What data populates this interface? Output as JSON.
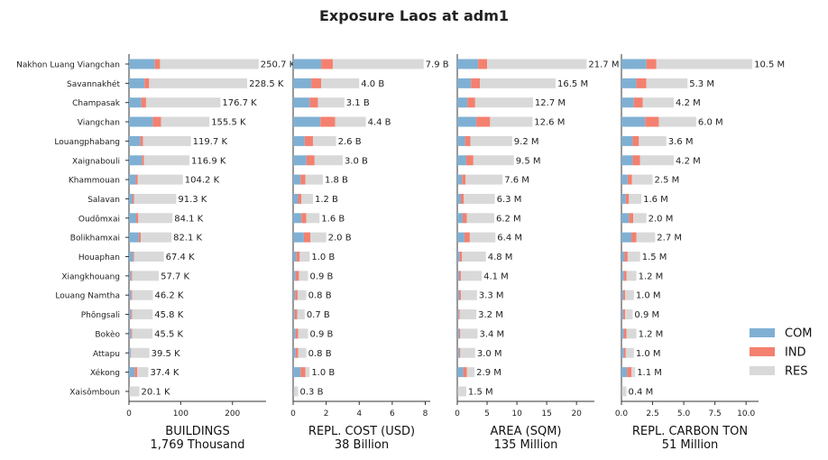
{
  "title": "Exposure Laos at adm1",
  "colors": {
    "COM": "#7fb0d3",
    "IND": "#f4806f",
    "RES": "#d9d9d9"
  },
  "legend": [
    "COM",
    "IND",
    "RES"
  ],
  "chart_data": {
    "type": "bar",
    "orientation": "horizontal",
    "stacked": true,
    "title": "Exposure Laos at adm1",
    "categories": [
      "Nakhon Luang Viangchan",
      "Savannakhét",
      "Champasak",
      "Viangchan",
      "Louangphabang",
      "Xaignabouli",
      "Khammouan",
      "Salavan",
      "Oudômxai",
      "Bolikhamxai",
      "Houaphan",
      "Xiangkhouang",
      "Louang Namtha",
      "Phôngsali",
      "Bokèo",
      "Attapu",
      "Xékong",
      "Xaisômboun"
    ],
    "panels": [
      {
        "xlabel": "BUILDINGS",
        "subtitle": "1,769 Thousand",
        "xlim": [
          0,
          265
        ],
        "xticks": [
          0,
          100,
          200
        ],
        "totals_label": [
          "250.7 K",
          "228.5 K",
          "176.7 K",
          "155.5 K",
          "119.7 K",
          "116.9 K",
          "104.2 K",
          "91.3 K",
          "84.1 K",
          "82.1 K",
          "67.4 K",
          "57.7 K",
          "46.2 K",
          "45.8 K",
          "45.5 K",
          "39.5 K",
          "37.4 K",
          "20.1 K"
        ],
        "series": [
          {
            "name": "COM",
            "values": [
              50,
              30,
              24,
              46,
              22,
              25,
              13,
              7,
              14,
              19,
              8,
              4,
              4,
              4,
              4,
              3,
              11,
              0.5
            ]
          },
          {
            "name": "IND",
            "values": [
              10,
              9,
              9,
              16,
              5,
              4,
              4,
              3,
              4,
              4,
              2,
              2,
              2,
              2,
              2,
              1,
              5,
              0.2
            ]
          },
          {
            "name": "RES",
            "values": [
              190.7,
              189.5,
              143.7,
              93.5,
              92.7,
              87.9,
              87.2,
              81.3,
              66.1,
              59.1,
              57.4,
              51.7,
              40.2,
              39.8,
              39.5,
              35.5,
              21.4,
              19.4
            ]
          }
        ]
      },
      {
        "xlabel": "REPL. COST (USD)",
        "subtitle": "38 Billion",
        "xlim": [
          0,
          8.3
        ],
        "xticks": [
          0,
          2,
          4,
          6,
          8
        ],
        "totals_label": [
          "7.9 B",
          "4.0 B",
          "3.1 B",
          "4.4 B",
          "2.6 B",
          "3.0 B",
          "1.8 B",
          "1.2 B",
          "1.6 B",
          "2.0 B",
          "1.0 B",
          "0.9 B",
          "0.8 B",
          "0.7 B",
          "0.9 B",
          "0.8 B",
          "1.0 B",
          "0.3 B"
        ],
        "series": [
          {
            "name": "COM",
            "values": [
              1.7,
              1.1,
              1.0,
              1.65,
              0.7,
              0.8,
              0.45,
              0.3,
              0.5,
              0.65,
              0.2,
              0.15,
              0.12,
              0.1,
              0.15,
              0.15,
              0.45,
              0.05
            ]
          },
          {
            "name": "IND",
            "values": [
              0.7,
              0.6,
              0.5,
              0.9,
              0.5,
              0.5,
              0.3,
              0.2,
              0.3,
              0.4,
              0.2,
              0.2,
              0.15,
              0.15,
              0.15,
              0.15,
              0.3,
              0.02
            ]
          },
          {
            "name": "RES",
            "values": [
              5.5,
              2.3,
              1.6,
              1.85,
              1.4,
              1.7,
              1.05,
              0.7,
              0.8,
              0.95,
              0.6,
              0.55,
              0.53,
              0.45,
              0.6,
              0.5,
              0.25,
              0.23
            ]
          }
        ]
      },
      {
        "xlabel": "AREA (SQM)",
        "subtitle": "135 Million",
        "xlim": [
          0,
          23
        ],
        "xticks": [
          0,
          5,
          10,
          15,
          20
        ],
        "totals_label": [
          "21.7 M",
          "16.5 M",
          "12.7 M",
          "12.6 M",
          "9.2 M",
          "9.5 M",
          "7.6 M",
          "6.3 M",
          "6.2 M",
          "6.4 M",
          "4.8 M",
          "4.1 M",
          "3.3 M",
          "3.2 M",
          "3.4 M",
          "3.0 M",
          "2.9 M",
          "1.5 M"
        ],
        "series": [
          {
            "name": "COM",
            "values": [
              3.5,
              2.3,
              1.7,
              3.2,
              1.3,
              1.5,
              0.8,
              0.6,
              0.9,
              1.2,
              0.4,
              0.3,
              0.3,
              0.2,
              0.3,
              0.3,
              1.0,
              0.05
            ]
          },
          {
            "name": "IND",
            "values": [
              1.5,
              1.5,
              1.3,
              2.3,
              0.9,
              1.2,
              0.6,
              0.5,
              0.7,
              0.9,
              0.4,
              0.3,
              0.3,
              0.2,
              0.2,
              0.2,
              0.6,
              0.05
            ]
          },
          {
            "name": "RES",
            "values": [
              16.7,
              12.7,
              9.7,
              7.1,
              7.0,
              6.8,
              6.2,
              5.2,
              4.6,
              4.3,
              4.0,
              3.5,
              2.7,
              2.8,
              2.9,
              2.5,
              1.3,
              1.4
            ]
          }
        ]
      },
      {
        "xlabel": "REPL. CARBON TON",
        "subtitle": "51 Million",
        "xlim": [
          0,
          11
        ],
        "xticks": [
          0.0,
          2.5,
          5.0,
          7.5,
          10.0
        ],
        "totals_label": [
          "10.5 M",
          "5.3 M",
          "4.2 M",
          "6.0 M",
          "3.6 M",
          "4.2 M",
          "2.5 M",
          "1.6 M",
          "2.0 M",
          "2.7 M",
          "1.5 M",
          "1.2 M",
          "1.0 M",
          "0.9 M",
          "1.2 M",
          "1.0 M",
          "1.1 M",
          "0.4 M"
        ],
        "series": [
          {
            "name": "COM",
            "values": [
              2.0,
              1.2,
              1.0,
              1.9,
              0.9,
              0.9,
              0.5,
              0.35,
              0.6,
              0.8,
              0.25,
              0.2,
              0.15,
              0.15,
              0.2,
              0.2,
              0.45,
              0.05
            ]
          },
          {
            "name": "IND",
            "values": [
              0.8,
              0.8,
              0.7,
              1.1,
              0.5,
              0.6,
              0.35,
              0.25,
              0.35,
              0.4,
              0.25,
              0.2,
              0.15,
              0.15,
              0.2,
              0.15,
              0.35,
              0.03
            ]
          },
          {
            "name": "RES",
            "values": [
              7.7,
              3.3,
              2.5,
              3.0,
              2.2,
              2.7,
              1.65,
              1.0,
              1.05,
              1.5,
              1.0,
              0.8,
              0.7,
              0.6,
              0.8,
              0.65,
              0.3,
              0.32
            ]
          }
        ]
      }
    ]
  }
}
